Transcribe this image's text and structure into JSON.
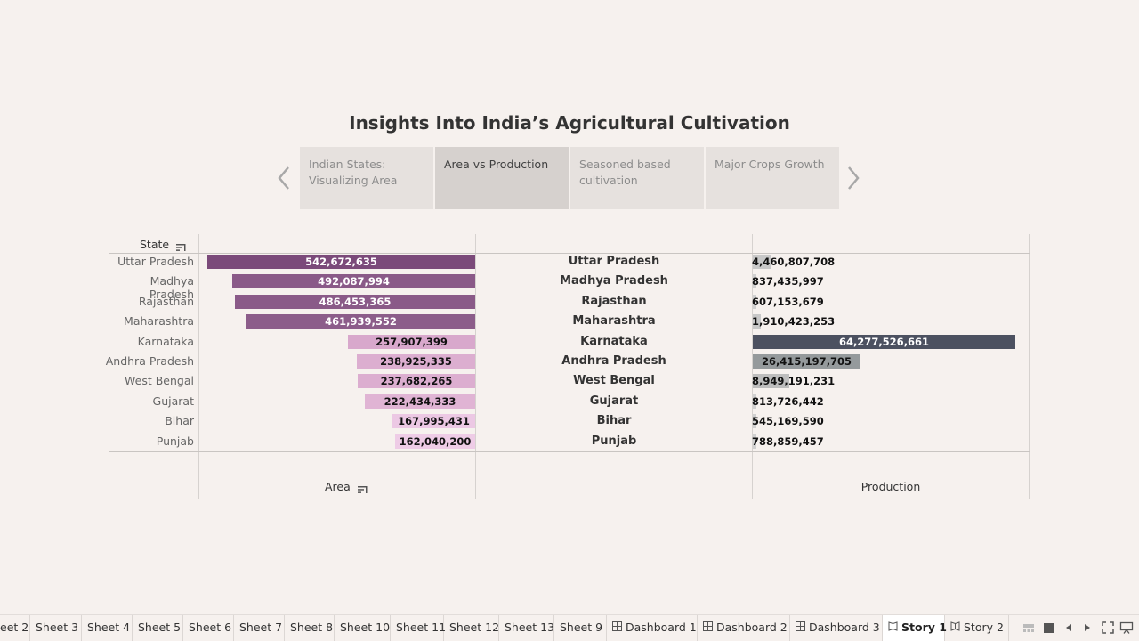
{
  "story": {
    "title": "Insights Into India’s Agricultural Cultivation",
    "points": [
      {
        "label": "Indian States: Visualizing Area",
        "active": false
      },
      {
        "label": "Area vs Production",
        "active": true
      },
      {
        "label": "Seasoned based cultivation",
        "active": false
      },
      {
        "label": "Major Crops Growth",
        "active": false
      }
    ],
    "prev_icon": "chevron-left-icon",
    "next_icon": "chevron-right-icon"
  },
  "viz": {
    "state_header": "State",
    "area_axis_label": "Area",
    "production_axis_label": "Production",
    "sort_icon": "sort-descending-icon"
  },
  "chart_data": {
    "type": "bar",
    "categories": [
      "Uttar Pradesh",
      "Madhya Pradesh",
      "Rajasthan",
      "Maharashtra",
      "Karnataka",
      "Andhra Pradesh",
      "West Bengal",
      "Gujarat",
      "Bihar",
      "Punjab"
    ],
    "series": [
      {
        "name": "Area",
        "values": [
          542672635,
          492087994,
          486453365,
          461939552,
          257907399,
          238925335,
          237682265,
          222434333,
          167995431,
          162040200
        ],
        "labels": [
          "542,672,635",
          "492,087,994",
          "486,453,365",
          "461,939,552",
          "257,907,399",
          "238,925,335",
          "237,682,265",
          "222,434,333",
          "167,995,431",
          "162,040,200"
        ]
      },
      {
        "name": "Production",
        "values": [
          4460807708,
          837435997,
          607153679,
          1910423253,
          64277526661,
          26415197705,
          8949191231,
          813726442,
          545169590,
          788859457
        ],
        "labels": [
          "4,460,807,708",
          "837,435,997",
          "607,153,679",
          "1,910,423,253",
          "64,277,526,661",
          "26,415,197,705",
          "8,949,191,231",
          "813,726,442",
          "545,169,590",
          "788,859,457"
        ]
      }
    ],
    "area_colors": [
      "#7b4a7a",
      "#8a5a88",
      "#8a5a88",
      "#8c5d8a",
      "#d8a8cc",
      "#dcaed0",
      "#dcaed0",
      "#e0b4d4",
      "#ecc8e4",
      "#eecce6"
    ],
    "production_colors": [
      "#c8c8c8",
      "#d0d0d0",
      "#d0d0d0",
      "#c8c8c8",
      "#4c5160",
      "#959a9c",
      "#bdbdbd",
      "#d0d0d0",
      "#d0d0d0",
      "#d0d0d0"
    ],
    "area_xlim": [
      0,
      560000000
    ],
    "production_xlim": [
      0,
      64277526661
    ]
  },
  "tabs": [
    {
      "label": "eet 2",
      "icon": ""
    },
    {
      "label": "Sheet 3",
      "icon": ""
    },
    {
      "label": "Sheet 4",
      "icon": ""
    },
    {
      "label": "Sheet 5",
      "icon": ""
    },
    {
      "label": "Sheet 6",
      "icon": ""
    },
    {
      "label": "Sheet 7",
      "icon": ""
    },
    {
      "label": "Sheet 8",
      "icon": ""
    },
    {
      "label": "Sheet 10",
      "icon": ""
    },
    {
      "label": "Sheet 11",
      "icon": ""
    },
    {
      "label": "Sheet 12",
      "icon": ""
    },
    {
      "label": "Sheet 13",
      "icon": ""
    },
    {
      "label": "Sheet 9",
      "icon": ""
    },
    {
      "label": "Dashboard 1",
      "icon": "dashboard-icon"
    },
    {
      "label": "Dashboard 2",
      "icon": "dashboard-icon"
    },
    {
      "label": "Dashboard 3",
      "icon": "dashboard-icon"
    },
    {
      "label": "Story 1",
      "icon": "story-icon",
      "active": true
    },
    {
      "label": "Story 2",
      "icon": "story-icon"
    }
  ],
  "tabbar_controls": [
    "show-filmstrip-icon",
    "show-tabs-icon",
    "scroll-left-icon",
    "scroll-right-icon",
    "fullscreen-icon",
    "presentation-icon"
  ]
}
